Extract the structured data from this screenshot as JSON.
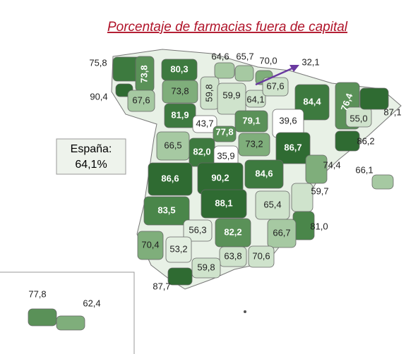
{
  "title": "Porcentaje de farmacias fuera de capital",
  "summary": {
    "label": "España:",
    "value": "64,1%"
  },
  "regions": [
    {
      "label": "75,8",
      "color": "#3d7a3f"
    },
    {
      "label": "73,8",
      "color": "#5a9158"
    },
    {
      "label": "80,3",
      "color": "#3d7a3f"
    },
    {
      "label": "64,6",
      "color": "#a6c9a2"
    },
    {
      "label": "65,7",
      "color": "#a6c9a2"
    },
    {
      "label": "70,0",
      "color": "#7fae7b"
    },
    {
      "label": "32,1",
      "color": "#ffffff"
    },
    {
      "label": "90,4",
      "color": "#2f6b32"
    },
    {
      "label": "67,6",
      "color": "#a6c9a2"
    },
    {
      "label": "73,8",
      "color": "#7fae7b"
    },
    {
      "label": "59,8",
      "color": "#cfe3cc"
    },
    {
      "label": "59,9",
      "color": "#cfe3cc"
    },
    {
      "label": "64,1",
      "color": "#cfe3cc"
    },
    {
      "label": "67,6",
      "color": "#cfe3cc"
    },
    {
      "label": "84,4",
      "color": "#3d7a3f"
    },
    {
      "label": "76,4",
      "color": "#5a9158"
    },
    {
      "label": "55,0",
      "color": "#cfe3cc"
    },
    {
      "label": "87,1",
      "color": "#2f6b32"
    },
    {
      "label": "81,9",
      "color": "#3d7a3f"
    },
    {
      "label": "43,7",
      "color": "#ffffff"
    },
    {
      "label": "79,1",
      "color": "#5a9158"
    },
    {
      "label": "39,6",
      "color": "#ffffff"
    },
    {
      "label": "77,8",
      "color": "#5a9158"
    },
    {
      "label": "86,2",
      "color": "#2f6b32"
    },
    {
      "label": "66,5",
      "color": "#a6c9a2"
    },
    {
      "label": "82,0",
      "color": "#3d7a3f"
    },
    {
      "label": "35,9",
      "color": "#ffffff"
    },
    {
      "label": "73,2",
      "color": "#7fae7b"
    },
    {
      "label": "86,7",
      "color": "#2f6b32"
    },
    {
      "label": "74,4",
      "color": "#7fae7b"
    },
    {
      "label": "66,1",
      "color": "#a6c9a2"
    },
    {
      "label": "84,6",
      "color": "#3d7a3f"
    },
    {
      "label": "90,2",
      "color": "#2f6b32"
    },
    {
      "label": "86,6",
      "color": "#2f6b32"
    },
    {
      "label": "59,7",
      "color": "#cfe3cc"
    },
    {
      "label": "88,1",
      "color": "#2f6b32"
    },
    {
      "label": "65,4",
      "color": "#cfe3cc"
    },
    {
      "label": "83,5",
      "color": "#4a864a"
    },
    {
      "label": "81,0",
      "color": "#4a864a"
    },
    {
      "label": "56,3",
      "color": "#e3efe1"
    },
    {
      "label": "82,2",
      "color": "#5a9158"
    },
    {
      "label": "66,7",
      "color": "#a6c9a2"
    },
    {
      "label": "70,4",
      "color": "#7fae7b"
    },
    {
      "label": "53,2",
      "color": "#e3efe1"
    },
    {
      "label": "63,8",
      "color": "#cfe3cc"
    },
    {
      "label": "70,6",
      "color": "#cfe3cc"
    },
    {
      "label": "59,8",
      "color": "#cfe3cc"
    },
    {
      "label": "87,7",
      "color": "#2f6b32"
    },
    {
      "label": "77,8",
      "color": "#5a9158"
    },
    {
      "label": "62,4",
      "color": "#7fae7b"
    }
  ]
}
